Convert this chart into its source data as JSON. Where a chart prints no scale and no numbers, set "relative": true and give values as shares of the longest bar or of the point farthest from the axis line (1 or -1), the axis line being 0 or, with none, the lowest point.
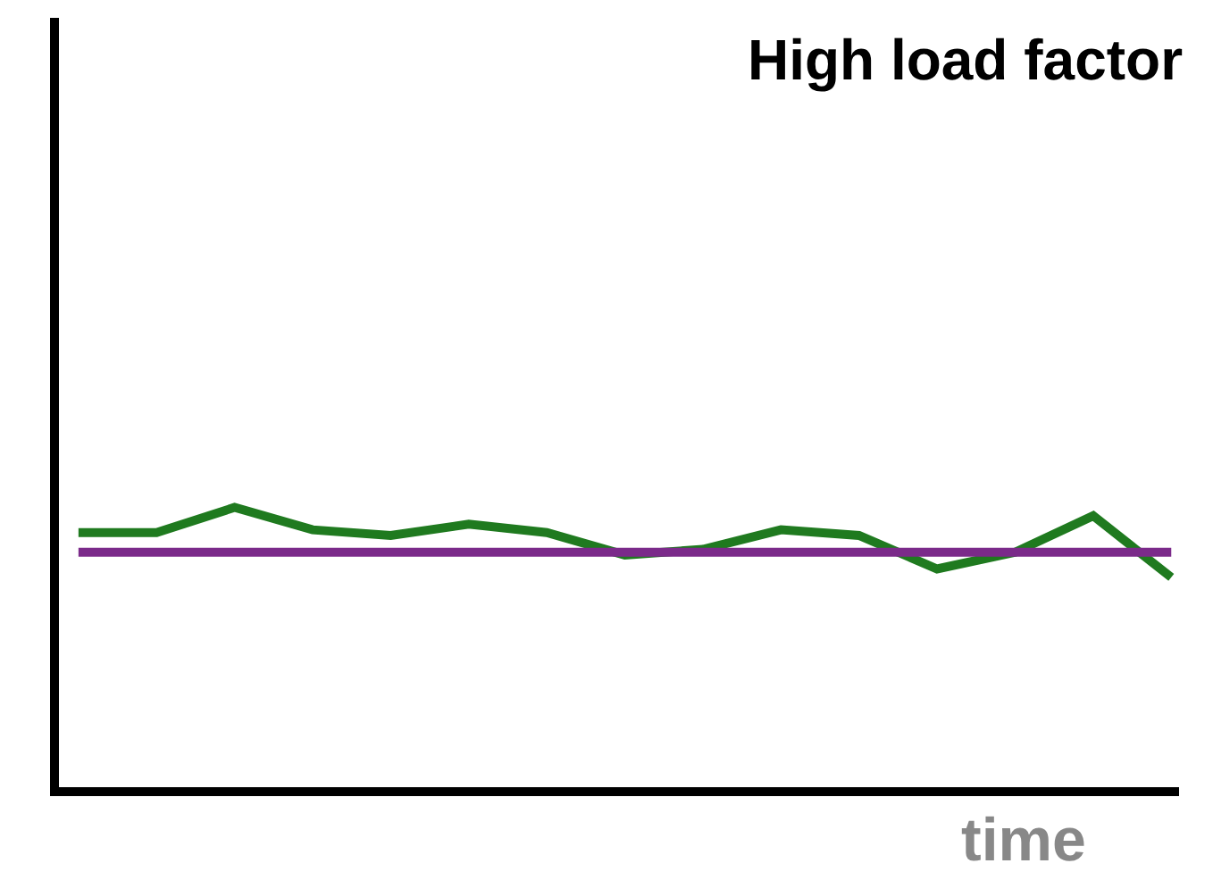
{
  "chart_data": {
    "type": "line",
    "title": "High load factor",
    "xlabel": "time",
    "relative": true,
    "categories": [
      null,
      null,
      null,
      null,
      null,
      null,
      null,
      null,
      null,
      null,
      null,
      null,
      null,
      null,
      null
    ],
    "series": [
      {
        "color": "#1f7a1f",
        "values": [
          0.91,
          0.91,
          1.0,
          0.92,
          0.9,
          0.94,
          0.91,
          0.83,
          0.85,
          0.92,
          0.9,
          0.78,
          0.84,
          0.97,
          0.75
        ]
      },
      {
        "color": "#7b2a8a",
        "values": [
          0.84,
          0.84,
          0.84,
          0.84,
          0.84,
          0.84,
          0.84,
          0.84,
          0.84,
          0.84,
          0.84,
          0.84,
          0.84,
          0.84,
          0.84
        ]
      }
    ],
    "marker": "none",
    "line_style": "solid"
  }
}
